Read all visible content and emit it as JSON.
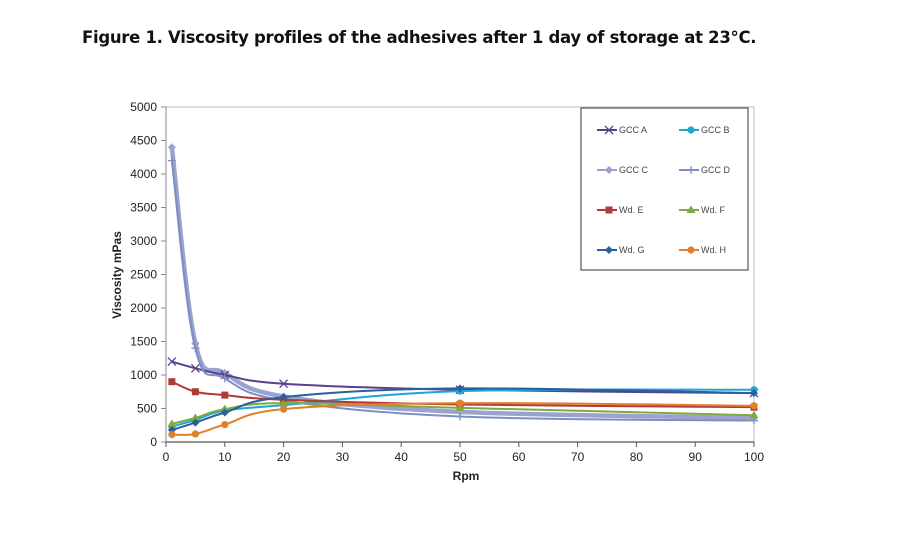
{
  "figure": {
    "title": "Figure 1. Viscosity profiles of the adhesives after 1 day of storage at 23°C."
  },
  "chart_data": {
    "type": "line",
    "title": "Figure 1. Viscosity profiles of the adhesives after 1 day of storage at 23°C.",
    "xlabel": "Rpm",
    "ylabel": "Viscosity mPas",
    "xlim": [
      0,
      100
    ],
    "ylim": [
      0,
      5000
    ],
    "x_ticks": [
      0,
      10,
      20,
      30,
      40,
      50,
      60,
      70,
      80,
      90,
      100
    ],
    "y_ticks": [
      0,
      500,
      1000,
      1500,
      2000,
      2500,
      3000,
      3500,
      4000,
      4500,
      5000
    ],
    "grid": false,
    "legend_position": "top-right",
    "x": [
      1,
      5,
      10,
      20,
      50,
      100
    ],
    "series": [
      {
        "name": "GCC A",
        "color": "#5b3f8a",
        "marker": "x",
        "values": [
          1200,
          1100,
          1000,
          870,
          780,
          730
        ]
      },
      {
        "name": "GCC B",
        "color": "#1ba8d8",
        "marker": "circle",
        "values": [
          230,
          330,
          470,
          550,
          760,
          780
        ]
      },
      {
        "name": "GCC C",
        "color": "#9aa3d0",
        "marker": "diamond",
        "thick": true,
        "values": [
          4400,
          1470,
          1030,
          680,
          450,
          360
        ]
      },
      {
        "name": "GCC D",
        "color": "#7e8ec4",
        "marker": "plus",
        "values": [
          4200,
          1400,
          950,
          620,
          380,
          320
        ]
      },
      {
        "name": "Wd. E",
        "color": "#b03a35",
        "marker": "square",
        "values": [
          900,
          750,
          700,
          630,
          560,
          520
        ]
      },
      {
        "name": "Wd. F",
        "color": "#7faa3f",
        "marker": "triangle",
        "values": [
          270,
          360,
          490,
          580,
          510,
          400
        ]
      },
      {
        "name": "Wd. G",
        "color": "#2d5f9a",
        "marker": "diamond",
        "values": [
          180,
          290,
          440,
          670,
          800,
          730
        ]
      },
      {
        "name": "Wd. H",
        "color": "#e07f2c",
        "marker": "circle",
        "values": [
          110,
          120,
          260,
          490,
          580,
          540
        ]
      }
    ]
  }
}
